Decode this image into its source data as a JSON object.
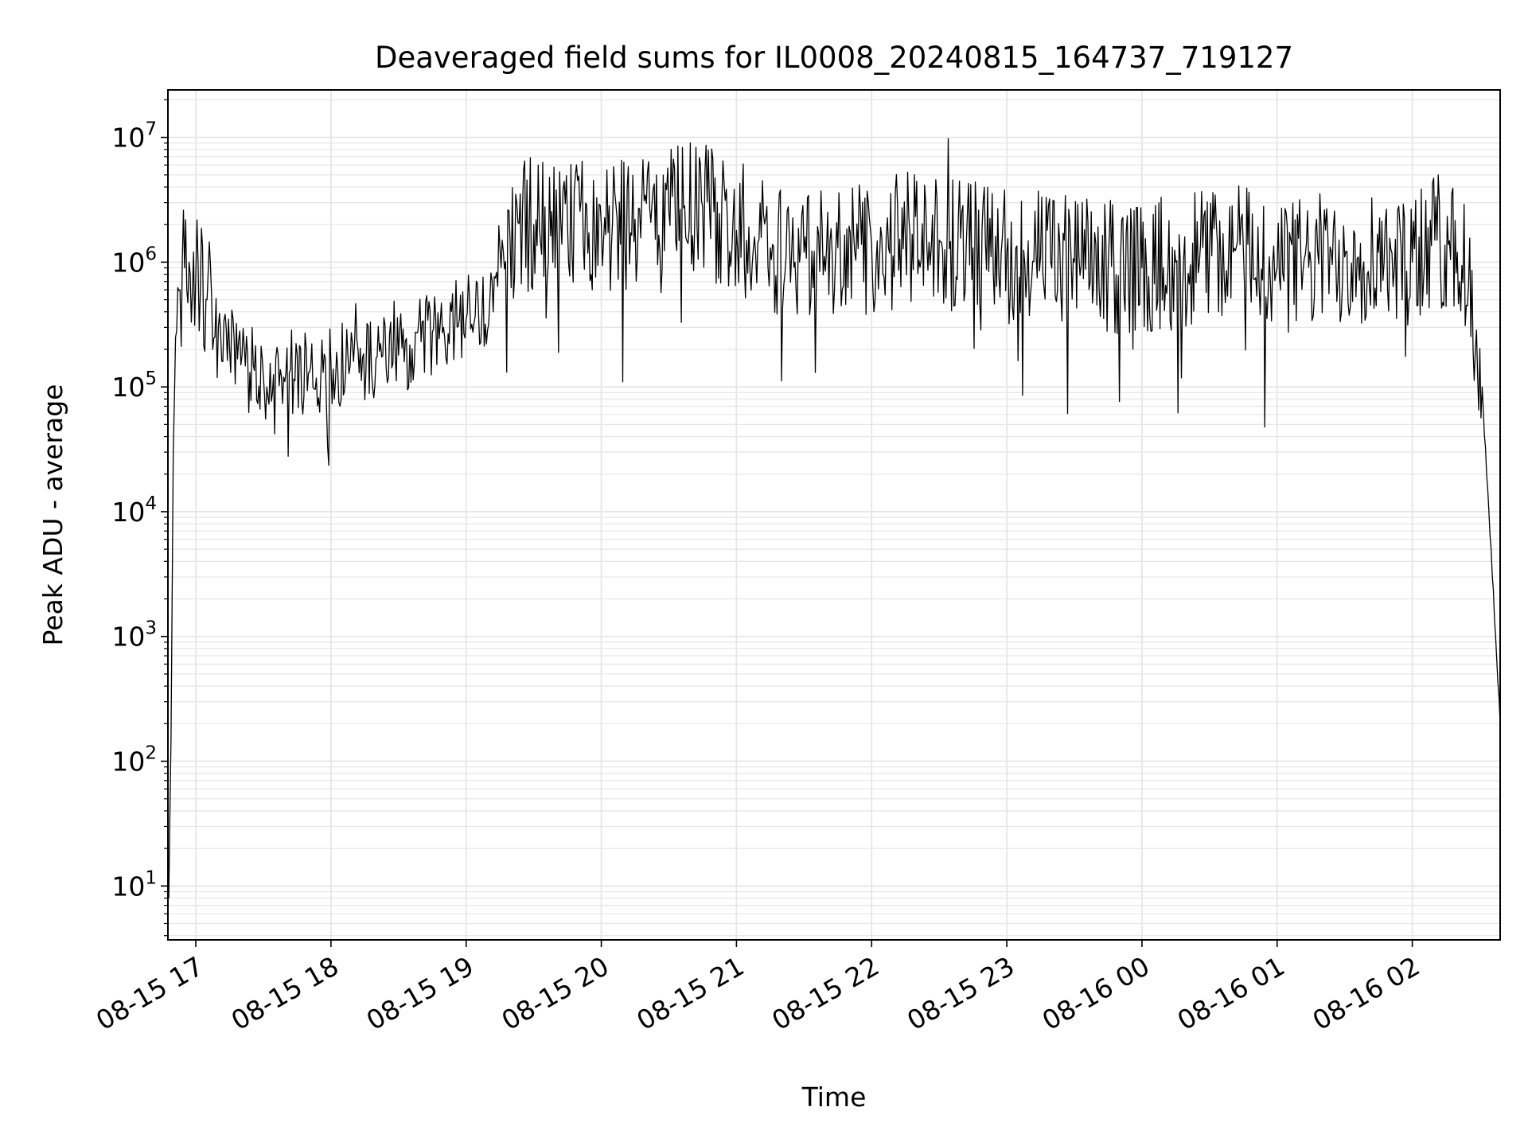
{
  "chart_data": {
    "type": "line",
    "title": "Deaveraged field sums for IL0008_20240815_164737_719127",
    "xlabel": "Time",
    "ylabel": "Peak ADU - average",
    "xlim": [
      "2024-08-15 16:47:37",
      "2024-08-16 02:39:00"
    ],
    "ylim": [
      3.7,
      24000000
    ],
    "yscale": "log",
    "grid": true,
    "line_color": "#000000",
    "grid_color": "#e6e6e6",
    "x_ticks": [
      {
        "t": "2024-08-15 17:00",
        "label": "08-15 17"
      },
      {
        "t": "2024-08-15 18:00",
        "label": "08-15 18"
      },
      {
        "t": "2024-08-15 19:00",
        "label": "08-15 19"
      },
      {
        "t": "2024-08-15 20:00",
        "label": "08-15 20"
      },
      {
        "t": "2024-08-15 21:00",
        "label": "08-15 21"
      },
      {
        "t": "2024-08-15 22:00",
        "label": "08-15 22"
      },
      {
        "t": "2024-08-15 23:00",
        "label": "08-15 23"
      },
      {
        "t": "2024-08-16 00:00",
        "label": "08-16 00"
      },
      {
        "t": "2024-08-16 01:00",
        "label": "08-16 01"
      },
      {
        "t": "2024-08-16 02:00",
        "label": "08-16 02"
      }
    ],
    "y_ticks": [
      {
        "value": 10,
        "base": "10",
        "exp": "1"
      },
      {
        "value": 100,
        "base": "10",
        "exp": "2"
      },
      {
        "value": 1000,
        "base": "10",
        "exp": "3"
      },
      {
        "value": 10000,
        "base": "10",
        "exp": "4"
      },
      {
        "value": 100000,
        "base": "10",
        "exp": "5"
      },
      {
        "value": 1000000,
        "base": "10",
        "exp": "6"
      },
      {
        "value": 10000000,
        "base": "10",
        "exp": "7"
      }
    ],
    "series": [
      {
        "points": [
          [
            "2024-08-15 16:48",
            8
          ],
          [
            "2024-08-15 16:49",
            150
          ],
          [
            "2024-08-15 16:50",
            30000
          ],
          [
            "2024-08-15 16:51",
            250000
          ],
          [
            "2024-08-15 16:53",
            600000
          ],
          [
            "2024-08-15 16:55",
            900000
          ],
          [
            "2024-08-15 16:57",
            1000000
          ],
          [
            "2024-08-15 17:00",
            800000
          ],
          [
            "2024-08-15 17:05",
            500000
          ],
          [
            "2024-08-15 17:10",
            300000
          ],
          [
            "2024-08-15 17:15",
            200000
          ],
          [
            "2024-08-15 17:20",
            150000
          ],
          [
            "2024-08-15 17:30",
            120000
          ],
          [
            "2024-08-15 17:40",
            130000
          ],
          [
            "2024-08-15 17:50",
            130000
          ],
          [
            "2024-08-15 18:00",
            150000
          ],
          [
            "2024-08-15 18:10",
            160000
          ],
          [
            "2024-08-15 18:20",
            170000
          ],
          [
            "2024-08-15 18:30",
            180000
          ],
          [
            "2024-08-15 18:40",
            230000
          ],
          [
            "2024-08-15 18:50",
            300000
          ],
          [
            "2024-08-15 19:00",
            350000
          ],
          [
            "2024-08-15 19:12",
            400000
          ],
          [
            "2024-08-15 19:16",
            1500000
          ],
          [
            "2024-08-15 19:30",
            2000000
          ],
          [
            "2024-08-15 19:45",
            2000000
          ],
          [
            "2024-08-15 20:00",
            2000000
          ],
          [
            "2024-08-15 20:15",
            2200000
          ],
          [
            "2024-08-15 20:30",
            2500000
          ],
          [
            "2024-08-15 20:45",
            2800000
          ],
          [
            "2024-08-15 21:00",
            1800000
          ],
          [
            "2024-08-15 21:15",
            1300000
          ],
          [
            "2024-08-15 21:30",
            1200000
          ],
          [
            "2024-08-15 21:45",
            1300000
          ],
          [
            "2024-08-15 22:00",
            1400000
          ],
          [
            "2024-08-15 22:15",
            1500000
          ],
          [
            "2024-08-15 22:30",
            1500000
          ],
          [
            "2024-08-15 22:45",
            1300000
          ],
          [
            "2024-08-15 23:00",
            1200000
          ],
          [
            "2024-08-15 23:15",
            1100000
          ],
          [
            "2024-08-15 23:30",
            1000000
          ],
          [
            "2024-08-15 23:45",
            900000
          ],
          [
            "2024-08-16 00:00",
            900000
          ],
          [
            "2024-08-16 00:15",
            1000000
          ],
          [
            "2024-08-16 00:30",
            1200000
          ],
          [
            "2024-08-16 00:45",
            1300000
          ],
          [
            "2024-08-16 01:00",
            900000
          ],
          [
            "2024-08-16 01:15",
            1000000
          ],
          [
            "2024-08-16 01:30",
            1100000
          ],
          [
            "2024-08-16 01:45",
            1200000
          ],
          [
            "2024-08-16 02:00",
            1000000
          ],
          [
            "2024-08-16 02:10",
            1500000
          ],
          [
            "2024-08-16 02:20",
            1200000
          ],
          [
            "2024-08-16 02:25",
            700000
          ],
          [
            "2024-08-16 02:28",
            200000
          ],
          [
            "2024-08-16 02:31",
            100000
          ],
          [
            "2024-08-16 02:33",
            20000
          ],
          [
            "2024-08-16 02:35",
            5000
          ],
          [
            "2024-08-16 02:37",
            1000
          ],
          [
            "2024-08-16 02:39",
            200
          ]
        ]
      }
    ]
  }
}
